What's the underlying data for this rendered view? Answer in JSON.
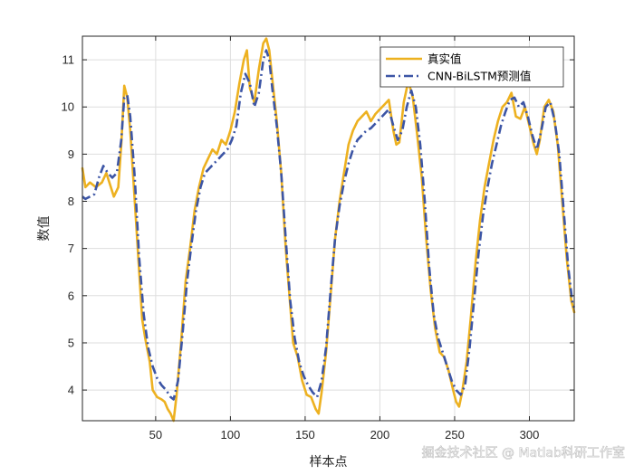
{
  "chart_data": {
    "type": "line",
    "xlabel": "样本点",
    "ylabel": "数值",
    "xlim": [
      1,
      330
    ],
    "ylim": [
      3.35,
      11.5
    ],
    "xticks": [
      50,
      100,
      150,
      200,
      250,
      300
    ],
    "yticks": [
      4,
      5,
      6,
      7,
      8,
      9,
      10,
      11
    ],
    "grid": true,
    "legend_position": "top-right",
    "series": [
      {
        "name": "真实值",
        "color": "#EDB120",
        "style": "solid",
        "points": [
          [
            1,
            8.7
          ],
          [
            3,
            8.3
          ],
          [
            6,
            8.4
          ],
          [
            10,
            8.3
          ],
          [
            14,
            8.4
          ],
          [
            17,
            8.6
          ],
          [
            20,
            8.3
          ],
          [
            22,
            8.1
          ],
          [
            25,
            8.3
          ],
          [
            27,
            9.2
          ],
          [
            29,
            10.45
          ],
          [
            31,
            10.2
          ],
          [
            33,
            9.5
          ],
          [
            36,
            8.0
          ],
          [
            39,
            6.5
          ],
          [
            41,
            5.5
          ],
          [
            43,
            5.1
          ],
          [
            46,
            4.6
          ],
          [
            48,
            4.0
          ],
          [
            51,
            3.85
          ],
          [
            54,
            3.8
          ],
          [
            56,
            3.75
          ],
          [
            58,
            3.6
          ],
          [
            60,
            3.5
          ],
          [
            62,
            3.35
          ],
          [
            64,
            3.9
          ],
          [
            67,
            5.0
          ],
          [
            70,
            6.3
          ],
          [
            73,
            7.0
          ],
          [
            76,
            7.8
          ],
          [
            79,
            8.3
          ],
          [
            82,
            8.7
          ],
          [
            85,
            8.9
          ],
          [
            88,
            9.1
          ],
          [
            91,
            9.0
          ],
          [
            94,
            9.3
          ],
          [
            97,
            9.2
          ],
          [
            100,
            9.5
          ],
          [
            103,
            9.9
          ],
          [
            106,
            10.5
          ],
          [
            109,
            11.0
          ],
          [
            111,
            11.2
          ],
          [
            113,
            10.4
          ],
          [
            116,
            10.1
          ],
          [
            119,
            10.8
          ],
          [
            122,
            11.35
          ],
          [
            124,
            11.45
          ],
          [
            126,
            11.2
          ],
          [
            128,
            10.6
          ],
          [
            131,
            9.7
          ],
          [
            134,
            8.6
          ],
          [
            137,
            7.0
          ],
          [
            140,
            5.8
          ],
          [
            142,
            5.0
          ],
          [
            145,
            4.7
          ],
          [
            148,
            4.2
          ],
          [
            151,
            3.9
          ],
          [
            154,
            3.85
          ],
          [
            157,
            3.6
          ],
          [
            159,
            3.5
          ],
          [
            161,
            3.95
          ],
          [
            164,
            4.8
          ],
          [
            167,
            6.0
          ],
          [
            170,
            7.2
          ],
          [
            173,
            8.0
          ],
          [
            176,
            8.6
          ],
          [
            179,
            9.2
          ],
          [
            182,
            9.5
          ],
          [
            185,
            9.7
          ],
          [
            188,
            9.8
          ],
          [
            191,
            9.9
          ],
          [
            194,
            9.7
          ],
          [
            197,
            9.85
          ],
          [
            200,
            9.95
          ],
          [
            203,
            10.05
          ],
          [
            206,
            10.15
          ],
          [
            209,
            9.5
          ],
          [
            211,
            9.2
          ],
          [
            213,
            9.25
          ],
          [
            216,
            10.1
          ],
          [
            219,
            10.55
          ],
          [
            222,
            10.2
          ],
          [
            225,
            9.4
          ],
          [
            228,
            8.5
          ],
          [
            231,
            7.2
          ],
          [
            234,
            6.1
          ],
          [
            237,
            5.3
          ],
          [
            240,
            4.8
          ],
          [
            243,
            4.7
          ],
          [
            246,
            4.4
          ],
          [
            249,
            4.0
          ],
          [
            251,
            3.75
          ],
          [
            253,
            3.65
          ],
          [
            255,
            3.95
          ],
          [
            258,
            4.6
          ],
          [
            261,
            5.6
          ],
          [
            264,
            6.7
          ],
          [
            267,
            7.6
          ],
          [
            270,
            8.3
          ],
          [
            273,
            8.8
          ],
          [
            276,
            9.3
          ],
          [
            279,
            9.7
          ],
          [
            282,
            10.0
          ],
          [
            285,
            10.1
          ],
          [
            288,
            10.3
          ],
          [
            291,
            9.8
          ],
          [
            294,
            9.75
          ],
          [
            297,
            10.0
          ],
          [
            300,
            9.6
          ],
          [
            303,
            9.2
          ],
          [
            305,
            9.0
          ],
          [
            307,
            9.3
          ],
          [
            310,
            10.0
          ],
          [
            313,
            10.15
          ],
          [
            316,
            9.9
          ],
          [
            319,
            9.2
          ],
          [
            322,
            8.0
          ],
          [
            325,
            6.8
          ],
          [
            328,
            5.9
          ],
          [
            330,
            5.65
          ]
        ]
      },
      {
        "name": "CNN-BiLSTM预测值",
        "color": "#3C55A5",
        "style": "dash-dot",
        "points": [
          [
            1,
            8.1
          ],
          [
            3,
            8.05
          ],
          [
            6,
            8.1
          ],
          [
            9,
            8.15
          ],
          [
            12,
            8.5
          ],
          [
            15,
            8.75
          ],
          [
            18,
            8.6
          ],
          [
            21,
            8.5
          ],
          [
            24,
            8.6
          ],
          [
            27,
            9.3
          ],
          [
            29,
            10.2
          ],
          [
            31,
            10.25
          ],
          [
            33,
            9.8
          ],
          [
            36,
            8.5
          ],
          [
            39,
            6.8
          ],
          [
            42,
            5.6
          ],
          [
            45,
            4.9
          ],
          [
            48,
            4.5
          ],
          [
            51,
            4.25
          ],
          [
            54,
            4.1
          ],
          [
            57,
            4.0
          ],
          [
            60,
            3.85
          ],
          [
            62,
            3.8
          ],
          [
            65,
            4.2
          ],
          [
            68,
            5.2
          ],
          [
            71,
            6.3
          ],
          [
            74,
            7.1
          ],
          [
            77,
            7.8
          ],
          [
            80,
            8.3
          ],
          [
            83,
            8.6
          ],
          [
            86,
            8.7
          ],
          [
            89,
            8.8
          ],
          [
            92,
            8.9
          ],
          [
            95,
            9.0
          ],
          [
            98,
            9.1
          ],
          [
            101,
            9.3
          ],
          [
            104,
            9.6
          ],
          [
            107,
            10.3
          ],
          [
            110,
            10.7
          ],
          [
            113,
            10.5
          ],
          [
            116,
            10.0
          ],
          [
            119,
            10.3
          ],
          [
            122,
            11.0
          ],
          [
            124,
            11.2
          ],
          [
            126,
            11.0
          ],
          [
            128,
            10.4
          ],
          [
            131,
            9.6
          ],
          [
            134,
            8.6
          ],
          [
            137,
            7.2
          ],
          [
            140,
            5.9
          ],
          [
            143,
            5.1
          ],
          [
            146,
            4.6
          ],
          [
            149,
            4.3
          ],
          [
            152,
            4.1
          ],
          [
            155,
            3.95
          ],
          [
            158,
            3.85
          ],
          [
            161,
            4.2
          ],
          [
            164,
            4.9
          ],
          [
            167,
            6.1
          ],
          [
            170,
            7.2
          ],
          [
            173,
            7.9
          ],
          [
            176,
            8.4
          ],
          [
            179,
            8.8
          ],
          [
            182,
            9.1
          ],
          [
            185,
            9.3
          ],
          [
            188,
            9.4
          ],
          [
            191,
            9.5
          ],
          [
            194,
            9.55
          ],
          [
            197,
            9.65
          ],
          [
            200,
            9.75
          ],
          [
            203,
            9.85
          ],
          [
            206,
            9.95
          ],
          [
            209,
            9.6
          ],
          [
            212,
            9.3
          ],
          [
            215,
            9.5
          ],
          [
            218,
            10.0
          ],
          [
            221,
            10.35
          ],
          [
            224,
            10.0
          ],
          [
            227,
            9.2
          ],
          [
            230,
            8.0
          ],
          [
            233,
            6.6
          ],
          [
            236,
            5.6
          ],
          [
            239,
            5.1
          ],
          [
            242,
            4.8
          ],
          [
            245,
            4.5
          ],
          [
            248,
            4.2
          ],
          [
            251,
            4.0
          ],
          [
            254,
            3.9
          ],
          [
            257,
            4.1
          ],
          [
            260,
            4.9
          ],
          [
            263,
            5.9
          ],
          [
            266,
            6.9
          ],
          [
            269,
            7.7
          ],
          [
            272,
            8.3
          ],
          [
            275,
            8.8
          ],
          [
            278,
            9.2
          ],
          [
            281,
            9.6
          ],
          [
            284,
            9.9
          ],
          [
            287,
            10.15
          ],
          [
            290,
            10.2
          ],
          [
            293,
            10.0
          ],
          [
            296,
            10.1
          ],
          [
            299,
            9.8
          ],
          [
            302,
            9.4
          ],
          [
            305,
            9.1
          ],
          [
            308,
            9.5
          ],
          [
            311,
            10.0
          ],
          [
            314,
            10.1
          ],
          [
            317,
            9.7
          ],
          [
            320,
            9.0
          ],
          [
            323,
            7.8
          ],
          [
            326,
            6.6
          ],
          [
            329,
            5.8
          ],
          [
            330,
            5.75
          ]
        ]
      }
    ]
  },
  "legend": {
    "items": [
      "真实值",
      "CNN-BiLSTM预测值"
    ]
  },
  "watermark": {
    "text": "掘金技术社区 @ Matlab科研工作室"
  }
}
